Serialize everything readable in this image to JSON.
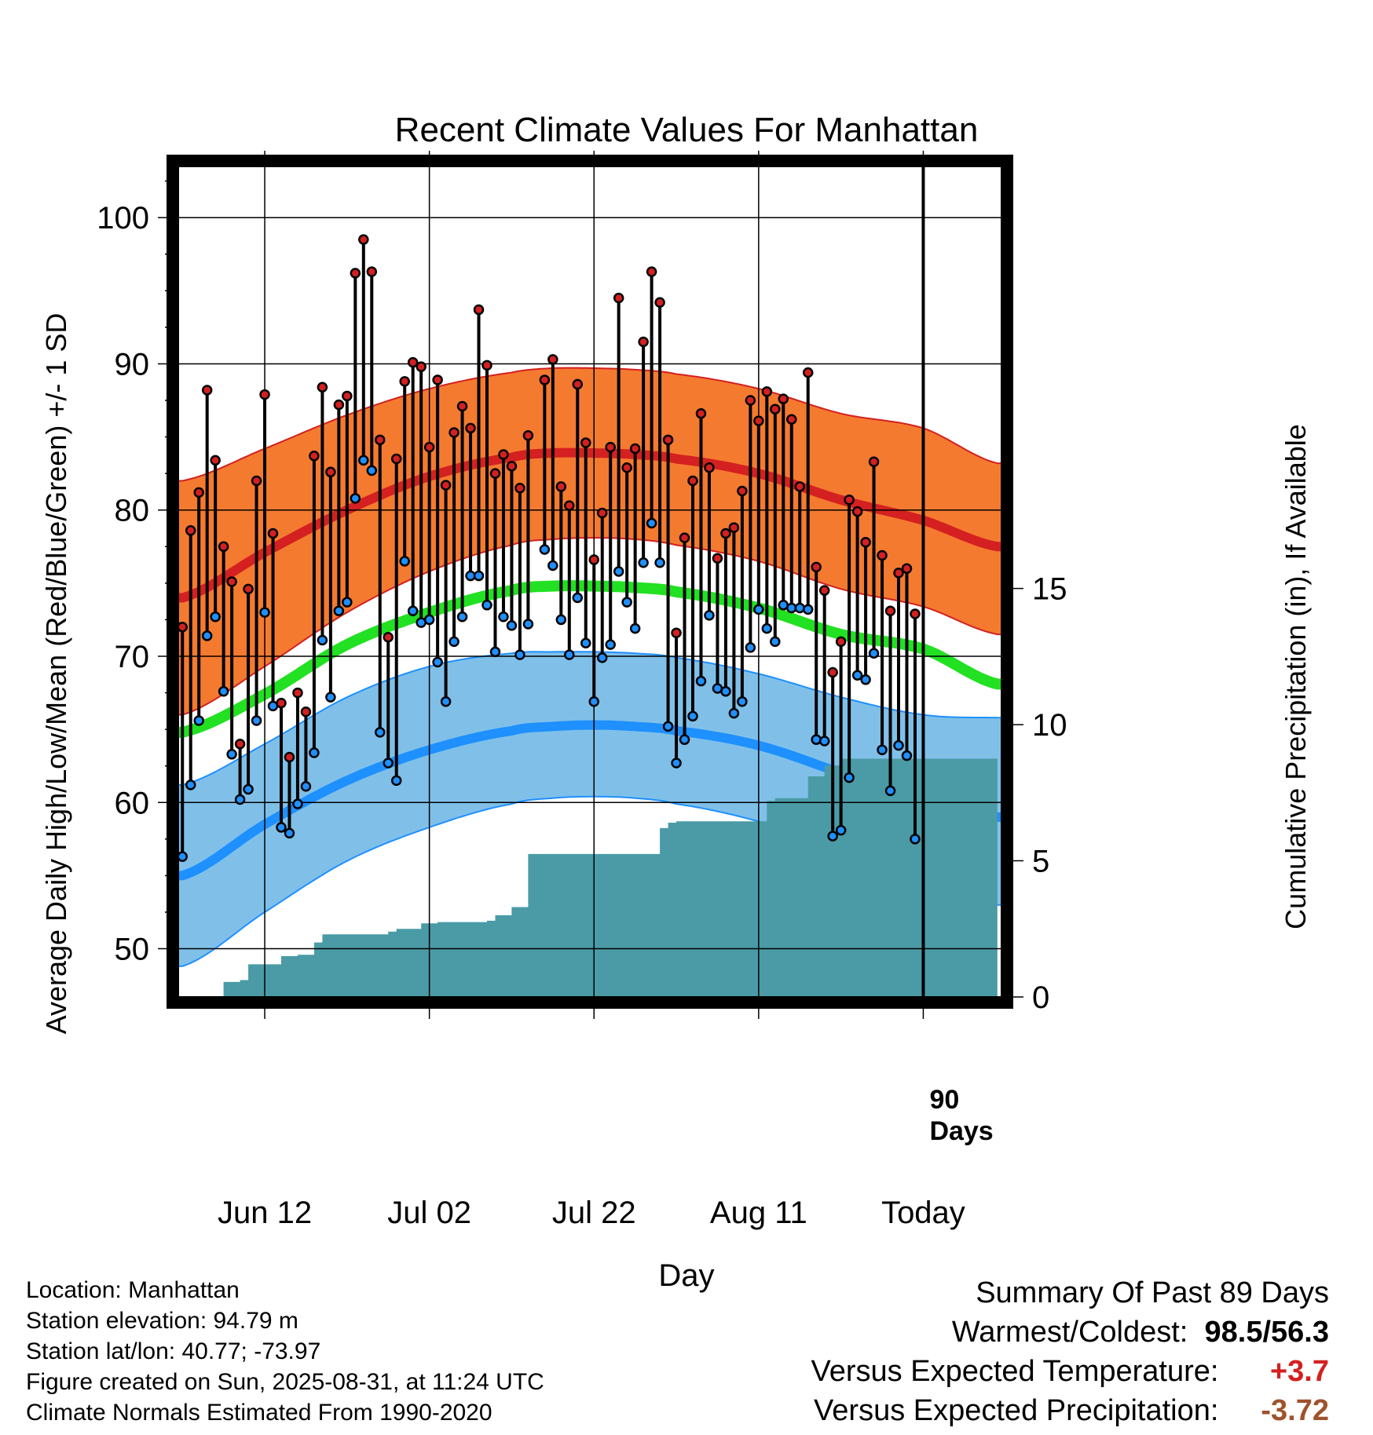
{
  "chart_data": {
    "type": "line",
    "title": "Recent Climate Values For Manhattan",
    "xlabel": "Day",
    "ylabel": "Average Daily High/Low/Mean (Red/Blue/Green) +/- 1 SD",
    "ylabel_right": "Cumulative Precipitation (in), If Available",
    "ylim": [
      46.7,
      103.5
    ],
    "y2lim": [
      0,
      30.5
    ],
    "yticks": [
      50,
      60,
      70,
      80,
      90,
      100
    ],
    "y2ticks": [
      0,
      5,
      10,
      15
    ],
    "xlim": [
      -0.5,
      99.5
    ],
    "x_ticks": [
      {
        "day": 10,
        "label": "Jun 12"
      },
      {
        "day": 30,
        "label": "Jul 02"
      },
      {
        "day": 50,
        "label": "Jul 22"
      },
      {
        "day": 70,
        "label": "Aug 11"
      },
      {
        "day": 90,
        "label": "Today"
      }
    ],
    "grid": true,
    "today_marker": {
      "day": 90,
      "label_line1": "90",
      "label_line2": "Days"
    },
    "normal_curves": {
      "days": [
        0,
        10,
        20,
        30,
        40,
        45,
        50,
        55,
        60,
        70,
        80,
        90,
        99
      ],
      "normal_high": [
        74.0,
        77.1,
        80.0,
        82.3,
        83.6,
        83.9,
        83.9,
        83.8,
        83.5,
        82.5,
        80.7,
        79.3,
        77.5
      ],
      "high_plus_sd": [
        82.0,
        84.2,
        86.5,
        88.3,
        89.4,
        89.7,
        89.7,
        89.6,
        89.3,
        88.3,
        86.6,
        85.6,
        83.2
      ],
      "high_minus_sd": [
        66.0,
        69.3,
        73.0,
        75.8,
        77.6,
        78.0,
        78.1,
        78.0,
        77.6,
        76.5,
        74.6,
        73.4,
        71.5
      ],
      "normal_mean": [
        64.8,
        67.4,
        70.8,
        73.0,
        74.5,
        74.8,
        74.8,
        74.7,
        74.4,
        73.3,
        71.5,
        70.5,
        68.1
      ],
      "normal_low": [
        55.0,
        58.5,
        61.5,
        63.6,
        64.9,
        65.2,
        65.3,
        65.2,
        64.9,
        63.9,
        62.0,
        59.9,
        59.0
      ],
      "low_plus_sd": [
        61.2,
        64.0,
        67.2,
        69.3,
        70.2,
        70.3,
        70.3,
        70.2,
        69.9,
        68.8,
        67.2,
        66.0,
        65.8
      ],
      "low_minus_sd": [
        48.8,
        52.5,
        56.0,
        58.3,
        59.9,
        60.3,
        60.4,
        60.3,
        59.9,
        58.7,
        56.8,
        54.8,
        53.0
      ]
    },
    "daily": {
      "start_day": 0,
      "high": [
        72.0,
        78.6,
        81.2,
        88.2,
        83.4,
        77.5,
        75.1,
        64.0,
        74.6,
        82.0,
        87.9,
        78.4,
        66.8,
        63.1,
        67.5,
        66.2,
        83.7,
        88.4,
        82.6,
        87.2,
        87.8,
        96.2,
        98.5,
        96.3,
        84.8,
        71.3,
        83.5,
        88.8,
        90.1,
        89.8,
        84.3,
        88.9,
        81.7,
        85.3,
        87.1,
        85.6,
        93.7,
        89.9,
        82.5,
        83.8,
        83.0,
        81.5,
        85.1,
        null,
        88.9,
        90.3,
        81.6,
        80.3,
        88.6,
        84.6,
        76.6,
        79.8,
        84.3,
        94.5,
        82.9,
        84.2,
        91.5,
        96.3,
        94.2,
        84.8,
        71.6,
        78.1,
        82.0,
        86.6,
        82.9,
        76.7,
        78.4,
        78.8,
        81.3,
        87.5,
        86.1,
        88.1,
        86.9,
        87.6,
        86.2,
        81.6,
        89.4,
        76.1,
        74.5,
        68.9,
        71.0,
        80.7,
        79.9,
        77.8,
        83.3,
        76.9,
        73.1,
        75.7,
        76.0,
        72.9
      ],
      "low": [
        56.3,
        61.2,
        65.6,
        71.4,
        72.7,
        67.6,
        63.3,
        60.2,
        60.9,
        65.6,
        73.0,
        66.6,
        58.3,
        57.9,
        59.9,
        61.1,
        63.4,
        71.1,
        67.2,
        73.1,
        73.7,
        80.8,
        83.4,
        82.7,
        64.8,
        62.7,
        61.5,
        76.5,
        73.1,
        72.3,
        72.5,
        69.6,
        66.9,
        71.0,
        72.7,
        75.5,
        75.5,
        73.5,
        70.3,
        72.7,
        72.1,
        70.1,
        72.2,
        null,
        77.3,
        76.2,
        72.5,
        70.1,
        74.0,
        70.9,
        66.9,
        69.9,
        70.8,
        75.8,
        73.7,
        71.9,
        76.4,
        79.1,
        76.4,
        65.2,
        62.7,
        64.3,
        65.9,
        68.3,
        72.8,
        67.8,
        67.6,
        66.1,
        66.9,
        70.6,
        73.2,
        71.9,
        71.0,
        73.5,
        73.3,
        73.3,
        73.2,
        64.3,
        64.2,
        57.7,
        58.1,
        61.7,
        68.7,
        68.4,
        70.2,
        63.6,
        60.8,
        63.9,
        63.2,
        57.5
      ]
    },
    "precipitation": {
      "days": [
        0,
        5,
        5,
        7,
        7,
        8,
        8,
        12,
        12,
        14,
        14,
        16,
        16,
        17,
        17,
        25,
        25,
        26,
        26,
        29,
        29,
        31,
        31,
        37,
        37,
        38,
        38,
        40,
        40,
        42,
        42,
        58,
        58,
        59,
        59,
        60,
        60,
        71,
        71,
        72,
        72,
        76,
        76,
        78,
        78,
        80,
        80,
        99
      ],
      "cumulative_in": [
        0,
        0,
        0.55,
        0.55,
        0.62,
        0.62,
        1.2,
        1.2,
        1.5,
        1.5,
        1.55,
        1.55,
        2.0,
        2.0,
        2.3,
        2.3,
        2.4,
        2.4,
        2.5,
        2.5,
        2.7,
        2.7,
        2.75,
        2.75,
        2.8,
        2.8,
        3.0,
        3.0,
        3.3,
        3.3,
        5.25,
        5.25,
        6.2,
        6.2,
        6.4,
        6.4,
        6.45,
        6.45,
        7.2,
        7.2,
        7.3,
        7.3,
        8.1,
        8.1,
        8.5,
        8.5,
        8.75,
        8.75
      ]
    },
    "colors": {
      "high_band": "#f47a30",
      "high_line": "#d42020",
      "mean_line": "#22e022",
      "low_band": "#80c0e8",
      "low_line": "#1e90ff",
      "precip": "#4a9ba6",
      "high_marker": "#d42020",
      "low_marker": "#1e90ff"
    }
  },
  "footer": {
    "location": "Location: Manhattan",
    "elevation": "Station elevation: 94.79 m",
    "latlon": "Station lat/lon: 40.77; -73.97",
    "created": "Figure created on Sun, 2025-08-31, at 11:24 UTC",
    "normals": "Climate Normals Estimated From 1990-2020"
  },
  "summary": {
    "heading": "Summary Of Past 89 Days",
    "warm_cold_label": "Warmest/Coldest:",
    "warmest": "98.5",
    "slash": "/",
    "coldest": "56.3",
    "temp_label": "Versus Expected Temperature:",
    "temp_value": "+3.7",
    "temp_color": "#d42020",
    "precip_label": "Versus Expected Precipitation:",
    "precip_value": "-3.72",
    "precip_color": "#a0522d"
  }
}
